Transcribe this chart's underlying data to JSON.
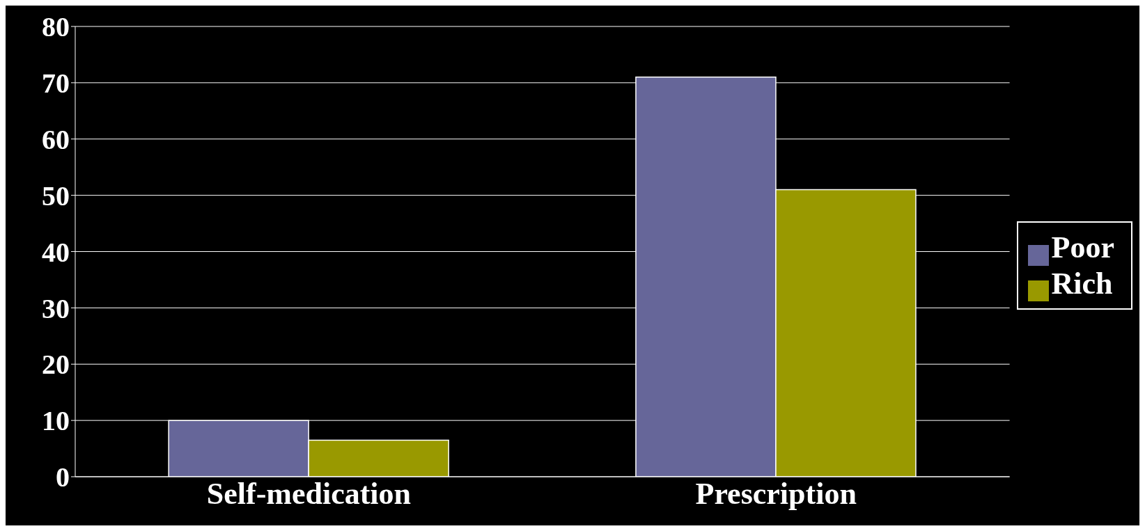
{
  "chart_data": {
    "type": "bar",
    "categories": [
      "Self-medication",
      "Prescription"
    ],
    "series": [
      {
        "name": "Poor",
        "color": "#666699",
        "values": [
          10,
          71
        ]
      },
      {
        "name": "Rich",
        "color": "#999900",
        "values": [
          6.5,
          51
        ]
      }
    ],
    "ylim": [
      0,
      80
    ],
    "yticks": [
      0,
      10,
      20,
      30,
      40,
      50,
      60,
      70,
      80
    ],
    "grid": "y",
    "legend": "right"
  }
}
